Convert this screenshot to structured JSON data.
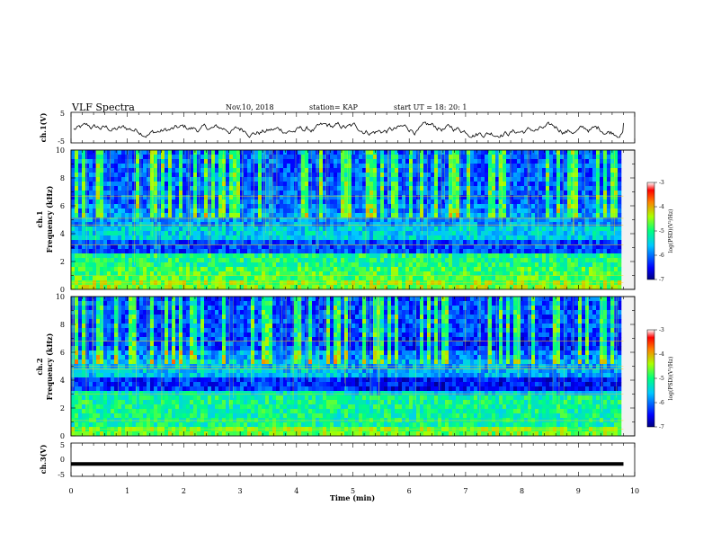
{
  "header": {
    "title": "VLF Spectra",
    "date": "Nov.10, 2018",
    "station": "station= KAP",
    "start": "start  UT =   18: 20: 1"
  },
  "chart_data": [
    {
      "type": "line",
      "panel": "ch1-waveform",
      "ylabel": "ch.1(V)",
      "ylim": [
        -5,
        5
      ],
      "yticks": [
        5,
        -5
      ],
      "xlim": [
        0,
        10
      ],
      "x_extent_min": [
        0,
        9.8
      ],
      "description_values": "waveform oscillating roughly between -3 and +1.5 V over 0–9.8 min"
    },
    {
      "type": "heatmap",
      "panel": "ch1-spectrogram",
      "ylabel": "ch.1\nFrequency (kHz)",
      "ylim": [
        0,
        10
      ],
      "yticks": [
        0,
        2,
        4,
        6,
        8,
        10
      ],
      "xlim": [
        0,
        10
      ],
      "x_extent_min": [
        0,
        9.8
      ],
      "colorbar": {
        "label": "log(PSD)(V²/Hz)",
        "range": [
          -7,
          -3
        ],
        "ticks": [
          -3,
          -4,
          -5,
          -6,
          -7
        ]
      }
    },
    {
      "type": "heatmap",
      "panel": "ch2-spectrogram",
      "ylabel": "ch.2\nFrequency (kHz)",
      "ylim": [
        0,
        10
      ],
      "yticks": [
        0,
        2,
        4,
        6,
        8,
        10
      ],
      "xlim": [
        0,
        10
      ],
      "x_extent_min": [
        0,
        9.8
      ],
      "colorbar": {
        "label": "log(PSD)(V²/Hz)",
        "range": [
          -7,
          -3
        ],
        "ticks": [
          -3,
          -4,
          -5,
          -6,
          -7
        ]
      }
    },
    {
      "type": "line",
      "panel": "ch3-waveform",
      "ylabel": "ch.3(V)",
      "ylim": [
        -5,
        5
      ],
      "yticks": [
        5,
        0,
        -5
      ],
      "xlim": [
        0,
        10
      ],
      "xlabel": "Time  (min)",
      "xticks": [
        0,
        1,
        2,
        3,
        4,
        5,
        6,
        7,
        8,
        9,
        10
      ],
      "x": [
        0,
        9.8
      ],
      "y": [
        -1.3,
        -1.3
      ]
    }
  ],
  "labels": {
    "ch1_v": "ch.1(V)",
    "ch1_name": "ch.1",
    "ch2_name": "ch.2",
    "freq": "Frequency  (kHz)",
    "ch3_v": "ch.3(V)",
    "time": "Time  (min)",
    "cb_label": "log(PSD)(V²/Hz)"
  },
  "ticks": {
    "x": [
      "0",
      "1",
      "2",
      "3",
      "4",
      "5",
      "6",
      "7",
      "8",
      "9",
      "10"
    ],
    "wave": [
      "5",
      "-5"
    ],
    "wave3": [
      "5",
      "0",
      "-5"
    ],
    "freq": [
      "0",
      "2",
      "4",
      "6",
      "8",
      "10"
    ],
    "cb": [
      "-3",
      "-4",
      "-5",
      "-6",
      "-7"
    ]
  }
}
